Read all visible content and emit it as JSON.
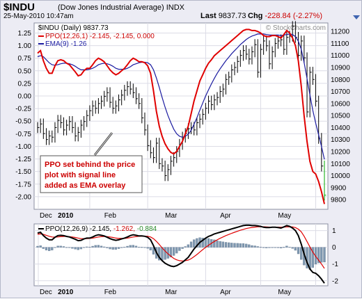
{
  "header": {
    "symbol": "$INDU",
    "name": "(Dow Jones Industrial Average)",
    "exchange": "INDX",
    "date": "25-May-2010 10:47am",
    "last_label": "Last",
    "last_value": "9837.73",
    "chg_label": "Chg",
    "chg_value": "-228.84 (-2.27%)"
  },
  "watermark": "© StockCharts.com",
  "annotation": [
    "PPO set behind the price",
    "plot with signal line",
    "added as EMA overlay"
  ],
  "colors": {
    "price_bar": "#000000",
    "ppo_line": "#e00000",
    "ema_line": "#1a1aa0",
    "histogram": "#7f98b0",
    "ppo_lower": "#000000",
    "signal_lower": "#e00000",
    "last_bar": "#00aa00",
    "background": "#ffffff",
    "grid": "#dcdce6"
  },
  "chart_data": [
    {
      "type": "line",
      "title": "$INDU (Daily) 9837.73",
      "legend": [
        {
          "label": "PPO(12,26,1) -2.145, -2.145, 0.000",
          "color": "#e00000"
        },
        {
          "label": "EMA(9) -1.26",
          "color": "#1a1aa0"
        }
      ],
      "legend_placement": "top-left",
      "x_tick_labels": [
        "Dec",
        "2010",
        "Feb",
        "Mar",
        "Apr",
        "May"
      ],
      "left_axis": {
        "ticks": [
          1.25,
          1.0,
          0.75,
          0.5,
          0.25,
          0.0,
          -0.25,
          -0.5,
          -0.75,
          -1.0,
          -1.25,
          -1.5,
          -1.75,
          -2.0
        ],
        "range": [
          -2.25,
          1.45
        ]
      },
      "right_axis": {
        "ticks": [
          11200,
          11100,
          11000,
          10900,
          10800,
          10700,
          10600,
          10500,
          10400,
          10300,
          10200,
          10100,
          10000,
          9900,
          9800
        ],
        "range": [
          9720,
          11270
        ]
      },
      "grid": true,
      "series": [
        {
          "name": "PPO(12,26,1)",
          "axis": "left",
          "values": [
            0.85,
            0.9,
            0.7,
            0.55,
            0.45,
            0.45,
            0.6,
            0.7,
            0.72,
            0.7,
            0.65,
            0.62,
            0.55,
            0.48,
            0.4,
            0.42,
            0.5,
            0.55,
            0.55,
            0.62,
            0.7,
            0.75,
            0.72,
            0.68,
            0.6,
            0.52,
            0.46,
            0.42,
            0.45,
            0.5,
            0.55,
            0.62,
            0.7,
            0.75,
            0.72,
            0.68,
            0.68,
            0.66,
            0.6,
            0.45,
            0.1,
            -0.3,
            -0.6,
            -0.8,
            -0.95,
            -1.05,
            -1.12,
            -1.15,
            -1.1,
            -1.0,
            -0.9,
            -0.75,
            -0.6,
            -0.35,
            -0.1,
            0.1,
            0.3,
            0.42,
            0.55,
            0.65,
            0.72,
            0.8,
            0.85,
            0.9,
            0.95,
            1.0,
            1.05,
            1.1,
            1.15,
            1.2,
            1.25,
            1.3,
            1.32,
            1.32,
            1.3,
            1.3,
            1.28,
            1.25,
            1.2,
            1.18,
            1.18,
            1.2,
            1.2,
            1.18,
            1.15,
            1.22,
            1.3,
            1.25,
            1.15,
            1.0,
            0.7,
            0.2,
            -0.4,
            -0.9,
            -1.3,
            -1.5,
            -1.55,
            -1.7,
            -1.9,
            -2.145
          ]
        },
        {
          "name": "EMA(9)",
          "axis": "left",
          "values": [
            0.78,
            0.8,
            0.78,
            0.72,
            0.66,
            0.62,
            0.61,
            0.62,
            0.64,
            0.65,
            0.65,
            0.64,
            0.62,
            0.59,
            0.55,
            0.52,
            0.52,
            0.52,
            0.53,
            0.55,
            0.58,
            0.62,
            0.64,
            0.65,
            0.64,
            0.62,
            0.59,
            0.55,
            0.53,
            0.53,
            0.53,
            0.55,
            0.58,
            0.62,
            0.64,
            0.66,
            0.67,
            0.67,
            0.66,
            0.62,
            0.52,
            0.36,
            0.17,
            -0.03,
            -0.22,
            -0.39,
            -0.53,
            -0.66,
            -0.75,
            -0.8,
            -0.82,
            -0.8,
            -0.76,
            -0.68,
            -0.56,
            -0.43,
            -0.28,
            -0.14,
            0.0,
            0.12,
            0.24,
            0.35,
            0.45,
            0.54,
            0.62,
            0.7,
            0.77,
            0.84,
            0.9,
            0.96,
            1.02,
            1.07,
            1.12,
            1.16,
            1.19,
            1.21,
            1.23,
            1.23,
            1.23,
            1.22,
            1.21,
            1.21,
            1.21,
            1.21,
            1.2,
            1.21,
            1.22,
            1.23,
            1.22,
            1.18,
            1.09,
            0.93,
            0.66,
            0.35,
            0.02,
            -0.29,
            -0.54,
            -0.77,
            -1.0,
            -1.26
          ]
        }
      ],
      "price_bars": {
        "axis": "right",
        "close": [
          10400,
          10430,
          10350,
          10300,
          10330,
          10320,
          10400,
          10460,
          10440,
          10380,
          10420,
          10450,
          10400,
          10330,
          10360,
          10420,
          10450,
          10500,
          10540,
          10580,
          10560,
          10600,
          10620,
          10660,
          10690,
          10610,
          10560,
          10580,
          10630,
          10670,
          10710,
          10740,
          10720,
          10690,
          10640,
          10600,
          10480,
          10380,
          10250,
          10190,
          10150,
          10270,
          10100,
          10080,
          10000,
          10050,
          10120,
          10150,
          10200,
          10260,
          10320,
          10350,
          10390,
          10400,
          10380,
          10440,
          10470,
          10510,
          10560,
          10620,
          10590,
          10630,
          10650,
          10700,
          10720,
          10800,
          10820,
          10880,
          10900,
          10950,
          11000,
          11040,
          11010,
          10970,
          11030,
          11090,
          10860,
          11050,
          11120,
          11080,
          10930,
          11030,
          11100,
          11120,
          11130,
          11050,
          11150,
          11160,
          11240,
          11150,
          11000,
          11120,
          10980,
          10530,
          10860,
          10800,
          10620,
          10310,
          10080,
          9837.73
        ]
      }
    },
    {
      "type": "line",
      "title": "PPO(12,26,9) -2.145, -1.262, -0.884",
      "x_tick_labels": [
        "Dec",
        "2010",
        "Feb",
        "Mar",
        "Apr",
        "May"
      ],
      "y_ticks": [
        1,
        0,
        -1,
        -2
      ],
      "ylim": [
        -2.3,
        1.4
      ],
      "series": [
        {
          "name": "PPO(12,26,9)",
          "values": [
            0.85,
            0.9,
            0.7,
            0.55,
            0.45,
            0.45,
            0.6,
            0.7,
            0.72,
            0.7,
            0.65,
            0.62,
            0.55,
            0.48,
            0.4,
            0.42,
            0.5,
            0.55,
            0.55,
            0.62,
            0.7,
            0.75,
            0.72,
            0.68,
            0.6,
            0.52,
            0.46,
            0.42,
            0.45,
            0.5,
            0.55,
            0.62,
            0.7,
            0.75,
            0.72,
            0.68,
            0.68,
            0.66,
            0.6,
            0.45,
            0.1,
            -0.3,
            -0.6,
            -0.8,
            -0.95,
            -1.05,
            -1.12,
            -1.15,
            -1.1,
            -1.0,
            -0.9,
            -0.75,
            -0.6,
            -0.35,
            -0.1,
            0.1,
            0.3,
            0.42,
            0.55,
            0.65,
            0.72,
            0.8,
            0.85,
            0.9,
            0.95,
            1.0,
            1.05,
            1.1,
            1.15,
            1.2,
            1.25,
            1.3,
            1.32,
            1.32,
            1.3,
            1.3,
            1.28,
            1.25,
            1.2,
            1.18,
            1.18,
            1.2,
            1.2,
            1.18,
            1.15,
            1.22,
            1.3,
            1.25,
            1.15,
            1.0,
            0.7,
            0.2,
            -0.4,
            -0.9,
            -1.3,
            -1.5,
            -1.55,
            -1.7,
            -1.9,
            -2.145
          ]
        },
        {
          "name": "Signal",
          "values": [
            0.78,
            0.8,
            0.78,
            0.72,
            0.66,
            0.62,
            0.61,
            0.62,
            0.64,
            0.65,
            0.65,
            0.64,
            0.62,
            0.59,
            0.55,
            0.52,
            0.52,
            0.52,
            0.53,
            0.55,
            0.58,
            0.62,
            0.64,
            0.65,
            0.64,
            0.62,
            0.59,
            0.55,
            0.53,
            0.53,
            0.53,
            0.55,
            0.58,
            0.62,
            0.64,
            0.66,
            0.67,
            0.67,
            0.66,
            0.62,
            0.52,
            0.36,
            0.17,
            -0.03,
            -0.22,
            -0.39,
            -0.53,
            -0.66,
            -0.75,
            -0.8,
            -0.82,
            -0.8,
            -0.76,
            -0.68,
            -0.56,
            -0.43,
            -0.28,
            -0.14,
            0.0,
            0.12,
            0.24,
            0.35,
            0.45,
            0.54,
            0.62,
            0.7,
            0.77,
            0.84,
            0.9,
            0.96,
            1.02,
            1.07,
            1.12,
            1.16,
            1.19,
            1.21,
            1.23,
            1.23,
            1.23,
            1.22,
            1.21,
            1.21,
            1.21,
            1.21,
            1.2,
            1.21,
            1.22,
            1.23,
            1.22,
            1.18,
            1.09,
            0.93,
            0.66,
            0.35,
            0.02,
            -0.29,
            -0.54,
            -0.77,
            -1.0,
            -1.26
          ]
        }
      ],
      "histogram": "PPO - Signal"
    }
  ]
}
